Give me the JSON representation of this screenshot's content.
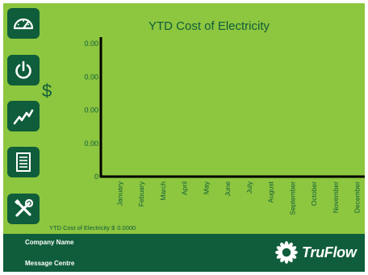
{
  "nav": {
    "items": [
      {
        "name": "dashboard",
        "icon": "speedometer-icon"
      },
      {
        "name": "power",
        "icon": "power-icon"
      },
      {
        "name": "trend",
        "icon": "trend-graph-icon"
      },
      {
        "name": "reports",
        "icon": "document-icon"
      },
      {
        "name": "settings",
        "icon": "tools-icon"
      }
    ]
  },
  "y_unit": "$",
  "summary": {
    "label": "YTD Cost of Electricity $",
    "value": "0.0000"
  },
  "footer": {
    "company_name": "Company Name",
    "message_centre": "Message Centre",
    "brand": "TruFlow"
  },
  "colors": {
    "background": "#8dc63f",
    "dark_green": "#0f5d3a",
    "axis": "#000000"
  },
  "chart_data": {
    "type": "bar",
    "title": "YTD Cost of Electricity",
    "xlabel": "",
    "ylabel": "$",
    "categories": [
      "January",
      "Febuary",
      "March",
      "April",
      "May",
      "June",
      "July",
      "August",
      "September",
      "October",
      "November",
      "December"
    ],
    "values": [
      0,
      0,
      0,
      0,
      0,
      0,
      0,
      0,
      0,
      0,
      0,
      0
    ],
    "y_ticks": [
      "0",
      "0.00",
      "0.00",
      "0.00",
      "0.00"
    ],
    "grid": false
  }
}
